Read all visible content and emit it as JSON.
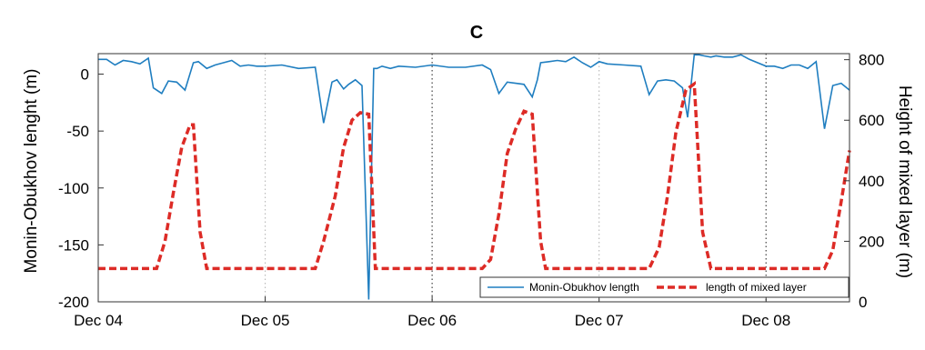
{
  "chart_data": {
    "type": "line",
    "title": "C",
    "xlabel": "",
    "ylabel_left": "Monin-Obukhov lenght (m)",
    "ylabel_right": "Height of mixed layer (m)",
    "x_tick_labels": [
      "Dec 04",
      "Dec 05",
      "Dec 06",
      "Dec 07",
      "Dec 08"
    ],
    "x_range_days": [
      0,
      4.5
    ],
    "ylim_left": [
      -200,
      18
    ],
    "ylim_right": [
      0,
      820
    ],
    "y_ticks_left": [
      0,
      -50,
      -100,
      -150,
      -200
    ],
    "y_ticks_right": [
      800,
      600,
      400,
      200,
      0
    ],
    "colors": {
      "mo": "#1f7ec0",
      "mixed": "#dd2b26"
    },
    "series": [
      {
        "name": "Monin-Obukhov length",
        "axis": "left",
        "style": "solid",
        "x": [
          0,
          0.05,
          0.1,
          0.15,
          0.2,
          0.25,
          0.3,
          0.33,
          0.38,
          0.42,
          0.47,
          0.52,
          0.57,
          0.6,
          0.65,
          0.7,
          0.75,
          0.8,
          0.85,
          0.9,
          0.95,
          1.0,
          1.1,
          1.2,
          1.3,
          1.35,
          1.4,
          1.43,
          1.47,
          1.5,
          1.54,
          1.58,
          1.62,
          1.65,
          1.67,
          1.7,
          1.75,
          1.8,
          1.9,
          2.0,
          2.1,
          2.2,
          2.3,
          2.35,
          2.4,
          2.45,
          2.5,
          2.55,
          2.6,
          2.63,
          2.65,
          2.7,
          2.75,
          2.8,
          2.85,
          2.9,
          2.95,
          3.0,
          3.05,
          3.15,
          3.25,
          3.3,
          3.35,
          3.4,
          3.45,
          3.5,
          3.53,
          3.57,
          3.6,
          3.63,
          3.67,
          3.7,
          3.75,
          3.8,
          3.85,
          3.9,
          4.0,
          4.05,
          4.1,
          4.15,
          4.2,
          4.25,
          4.3,
          4.35,
          4.4,
          4.45,
          4.5
        ],
        "y": [
          13,
          13,
          8,
          12,
          11,
          9,
          14,
          -12,
          -17,
          -6,
          -7,
          -14,
          10,
          11,
          5,
          8,
          10,
          12,
          7,
          8,
          7,
          7,
          8,
          5,
          6,
          -43,
          -7,
          -5,
          -13,
          -9,
          -5,
          -10,
          -198,
          5,
          5,
          7,
          5,
          7,
          6,
          8,
          6,
          6,
          8,
          4,
          -17,
          -7,
          -8,
          -9,
          -20,
          -5,
          10,
          11,
          12,
          11,
          15,
          10,
          6,
          11,
          9,
          8,
          7,
          -18,
          -6,
          -5,
          -6,
          -12,
          -38,
          17,
          17,
          16,
          15,
          16,
          15,
          15,
          17,
          13,
          7,
          7,
          5,
          8,
          8,
          5,
          11,
          -48,
          -10,
          -8,
          -14
        ]
      },
      {
        "name": "length of mixed layer",
        "axis": "right",
        "style": "dashed",
        "x": [
          0,
          0.35,
          0.4,
          0.45,
          0.5,
          0.55,
          0.57,
          0.61,
          0.65,
          1.0,
          1.3,
          1.35,
          1.42,
          1.47,
          1.52,
          1.57,
          1.62,
          1.66,
          2.0,
          2.3,
          2.35,
          2.4,
          2.45,
          2.5,
          2.55,
          2.6,
          2.65,
          2.68,
          3.0,
          3.3,
          3.36,
          3.41,
          3.46,
          3.52,
          3.57,
          3.62,
          3.67,
          4.0,
          4.35,
          4.4,
          4.45,
          4.5
        ],
        "y": [
          110,
          110,
          200,
          360,
          510,
          585,
          585,
          230,
          110,
          110,
          110,
          200,
          350,
          510,
          600,
          625,
          620,
          110,
          110,
          110,
          140,
          290,
          490,
          570,
          630,
          620,
          200,
          110,
          110,
          110,
          180,
          350,
          560,
          700,
          720,
          230,
          110,
          110,
          110,
          170,
          330,
          500
        ]
      }
    ],
    "legend": [
      "Monin-Obukhov length",
      "length of mixed layer"
    ],
    "legend_position": "bottom-right",
    "grid": "vertical dotted lines at each day"
  }
}
